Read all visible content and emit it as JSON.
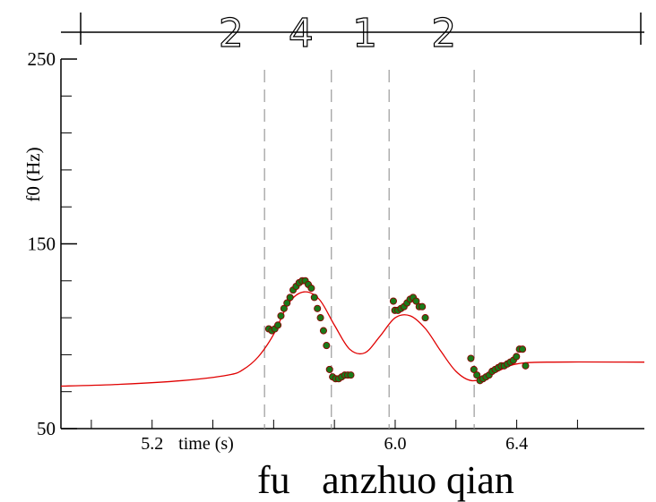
{
  "chart_data": {
    "type": "scatter",
    "title": "",
    "xlabel": "time (s)",
    "ylabel": "f0 (Hz)",
    "xlim": [
      4.9,
      6.82
    ],
    "ylim": [
      50,
      250
    ],
    "x_tick_labels": [
      {
        "value": 5.2,
        "label": "5.2"
      },
      {
        "value": 6.0,
        "label": "6.0"
      },
      {
        "value": 6.4,
        "label": "6.4"
      }
    ],
    "x_minor_ticks": [
      5.0,
      5.2,
      5.4,
      5.6,
      5.8,
      6.0,
      6.2,
      6.4,
      6.6
    ],
    "y_tick_labels": [
      {
        "value": 50,
        "label": "50"
      },
      {
        "value": 150,
        "label": "150"
      },
      {
        "value": 250,
        "label": "250"
      }
    ],
    "y_minor_ticks": [
      70,
      90,
      110,
      130,
      170,
      190,
      210,
      230
    ],
    "grid": false,
    "tone_boundaries": [
      5.57,
      5.79,
      5.98,
      6.26
    ],
    "tones": [
      {
        "label": "2",
        "x": 5.46
      },
      {
        "label": "4",
        "x": 5.69
      },
      {
        "label": "1",
        "x": 5.9
      },
      {
        "label": "2",
        "x": 6.16
      }
    ],
    "syllables": [
      {
        "label": "fu",
        "x": 5.6
      },
      {
        "label": "an",
        "x": 5.82
      },
      {
        "label": "zhuo",
        "x": 6.01
      },
      {
        "label": "qian",
        "x": 6.28
      }
    ],
    "series": [
      {
        "kind": "scatter",
        "color": "#1a7a1a",
        "edge_color": "#8b0000",
        "x": [
          5.584,
          5.594,
          5.604,
          5.614,
          5.624,
          5.634,
          5.644,
          5.654,
          5.664,
          5.674,
          5.684,
          5.694,
          5.704,
          5.714,
          5.724,
          5.734,
          5.744,
          5.754,
          5.764,
          5.774,
          5.784,
          5.794,
          5.804,
          5.814,
          5.824,
          5.834,
          5.844,
          5.854,
          5.994,
          5.999,
          6.009,
          6.019,
          6.029,
          6.039,
          6.049,
          6.059,
          6.069,
          6.079,
          6.089,
          6.099,
          6.249,
          6.259,
          6.269,
          6.279,
          6.289,
          6.299,
          6.309,
          6.319,
          6.329,
          6.339,
          6.349,
          6.359,
          6.369,
          6.379,
          6.389,
          6.399,
          6.409,
          6.419,
          6.429
        ],
        "y": [
          104,
          103,
          104,
          106,
          111,
          115,
          118,
          121,
          125,
          127,
          129,
          130,
          130,
          128,
          126,
          121,
          115,
          110,
          103,
          95,
          82,
          78,
          77,
          77,
          78,
          79,
          79,
          79,
          119,
          114,
          114,
          115,
          116,
          118,
          120,
          121,
          119,
          116,
          116,
          110,
          88,
          82,
          79,
          76,
          77,
          78,
          79,
          81,
          82,
          83,
          84,
          84,
          85,
          86,
          87,
          89,
          93,
          93,
          84
        ],
        "symbol": "circle"
      },
      {
        "kind": "line",
        "color": "#e00000",
        "x": [
          4.9,
          5.1,
          5.3,
          5.45,
          5.5,
          5.55,
          5.6,
          5.65,
          5.7,
          5.75,
          5.8,
          5.85,
          5.9,
          5.95,
          6.0,
          6.05,
          6.1,
          6.15,
          6.2,
          6.25,
          6.3,
          6.35,
          6.4,
          6.5,
          6.82
        ],
        "y": [
          73,
          74,
          76,
          79,
          82,
          89,
          101,
          118,
          124,
          120,
          106,
          93,
          91,
          100,
          110,
          111,
          104,
          92,
          81,
          76,
          78,
          82,
          85,
          86,
          86
        ]
      }
    ]
  }
}
